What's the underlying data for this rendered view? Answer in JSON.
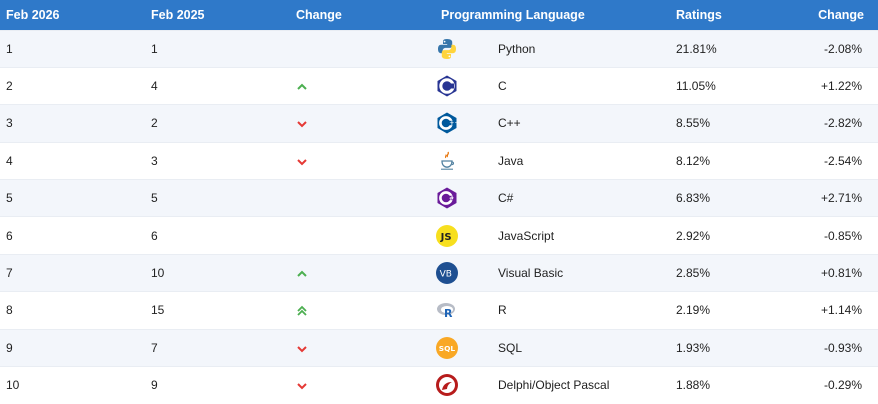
{
  "header": {
    "col_current": "Feb 2026",
    "col_previous": "Feb 2025",
    "col_change": "Change",
    "col_language": "Programming Language",
    "col_ratings": "Ratings",
    "col_change_pct": "Change"
  },
  "colors": {
    "header_bg": "#2f79c9",
    "up": "#4caf50",
    "down": "#e53935"
  },
  "rows": [
    {
      "rank": "1",
      "prev": "1",
      "trend": "none",
      "icon": "python-icon",
      "language": "Python",
      "rating": "21.81%",
      "change": "-2.08%"
    },
    {
      "rank": "2",
      "prev": "4",
      "trend": "up",
      "icon": "c-icon",
      "language": "C",
      "rating": "11.05%",
      "change": "+1.22%"
    },
    {
      "rank": "3",
      "prev": "2",
      "trend": "down",
      "icon": "cpp-icon",
      "language": "C++",
      "rating": "8.55%",
      "change": "-2.82%"
    },
    {
      "rank": "4",
      "prev": "3",
      "trend": "down",
      "icon": "java-icon",
      "language": "Java",
      "rating": "8.12%",
      "change": "-2.54%"
    },
    {
      "rank": "5",
      "prev": "5",
      "trend": "none",
      "icon": "csharp-icon",
      "language": "C#",
      "rating": "6.83%",
      "change": "+2.71%"
    },
    {
      "rank": "6",
      "prev": "6",
      "trend": "none",
      "icon": "javascript-icon",
      "language": "JavaScript",
      "rating": "2.92%",
      "change": "-0.85%"
    },
    {
      "rank": "7",
      "prev": "10",
      "trend": "up",
      "icon": "visual-basic-icon",
      "language": "Visual Basic",
      "rating": "2.85%",
      "change": "+0.81%"
    },
    {
      "rank": "8",
      "prev": "15",
      "trend": "up2",
      "icon": "r-icon",
      "language": "R",
      "rating": "2.19%",
      "change": "+1.14%"
    },
    {
      "rank": "9",
      "prev": "7",
      "trend": "down",
      "icon": "sql-icon",
      "language": "SQL",
      "rating": "1.93%",
      "change": "-0.93%"
    },
    {
      "rank": "10",
      "prev": "9",
      "trend": "down",
      "icon": "delphi-icon",
      "language": "Delphi/Object Pascal",
      "rating": "1.88%",
      "change": "-0.29%"
    }
  ]
}
